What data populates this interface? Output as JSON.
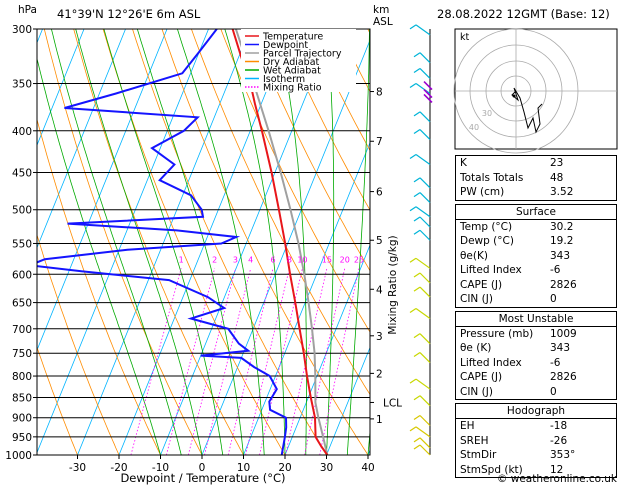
{
  "header": {
    "location": "41°39'N 12°26'E 6m ASL",
    "datetime": "28.08.2022 12GMT (Base: 12)",
    "left_unit": "hPa",
    "km_label": "km",
    "asl_label": "ASL",
    "footer": "© weatheronline.co.uk"
  },
  "legend": [
    {
      "label": "Temperature",
      "color": "#e8161a"
    },
    {
      "label": "Dewpoint",
      "color": "#1414ff"
    },
    {
      "label": "Parcel Trajectory",
      "color": "#a0a0a0"
    },
    {
      "label": "Dry Adiabat",
      "color": "#ff8c00"
    },
    {
      "label": "Wet Adiabat",
      "color": "#00aa00"
    },
    {
      "label": "Isotherm",
      "color": "#00b4ff"
    },
    {
      "label": "Mixing Ratio",
      "color": "#ff00ff"
    }
  ],
  "chart_data": {
    "type": "skew-t",
    "xlabel": "Dewpoint / Temperature (°C)",
    "ylabel_right": "Mixing Ratio (g/kg)",
    "pressure_levels": [
      300,
      350,
      400,
      450,
      500,
      550,
      600,
      650,
      700,
      750,
      800,
      850,
      900,
      950,
      1000
    ],
    "x_ticks": [
      -30,
      -20,
      -10,
      0,
      10,
      20,
      30,
      40
    ],
    "x_tick_labels": [
      "-30",
      "-20",
      "-10",
      "0",
      "10",
      "20",
      "30",
      "40"
    ],
    "km_ticks": [
      {
        "label": "8",
        "p": 358
      },
      {
        "label": "7",
        "p": 412
      },
      {
        "label": "6",
        "p": 475
      },
      {
        "label": "5",
        "p": 545
      },
      {
        "label": "4",
        "p": 626
      },
      {
        "label": "3",
        "p": 714
      },
      {
        "label": "2",
        "p": 794
      },
      {
        "label": "LCL",
        "p": 862
      },
      {
        "label": "1",
        "p": 903
      }
    ],
    "mixing_ratio_labels": [
      {
        "label": "1",
        "w": 1
      },
      {
        "label": "2",
        "w": 2
      },
      {
        "label": "3",
        "w": 3
      },
      {
        "label": "4",
        "w": 4
      },
      {
        "label": "6",
        "w": 6
      },
      {
        "label": "8",
        "w": 8
      },
      {
        "label": "10",
        "w": 10
      },
      {
        "label": "15",
        "w": 15
      },
      {
        "label": "20",
        "w": 20
      },
      {
        "label": "25",
        "w": 25
      }
    ],
    "temperature": [
      [
        1000,
        30.2
      ],
      [
        975,
        27.8
      ],
      [
        950,
        25.6
      ],
      [
        925,
        24.6
      ],
      [
        900,
        23.6
      ],
      [
        850,
        20.6
      ],
      [
        800,
        17.6
      ],
      [
        750,
        14.6
      ],
      [
        700,
        11.2
      ],
      [
        650,
        7.6
      ],
      [
        600,
        3.6
      ],
      [
        550,
        -0.6
      ],
      [
        500,
        -5.4
      ],
      [
        450,
        -10.8
      ],
      [
        400,
        -17.2
      ],
      [
        370,
        -21.6
      ],
      [
        350,
        -24.6
      ],
      [
        330,
        -28.4
      ],
      [
        300,
        -34.2
      ]
    ],
    "dewpoint": [
      [
        1000,
        19.2
      ],
      [
        950,
        18.2
      ],
      [
        925,
        17.6
      ],
      [
        900,
        16.6
      ],
      [
        880,
        12.0
      ],
      [
        860,
        11.0
      ],
      [
        830,
        11.6
      ],
      [
        800,
        8.6
      ],
      [
        780,
        4.0
      ],
      [
        760,
        0.0
      ],
      [
        755,
        -10.0
      ],
      [
        745,
        1.0
      ],
      [
        730,
        -2.0
      ],
      [
        700,
        -6.0
      ],
      [
        680,
        -16.0
      ],
      [
        660,
        -9.0
      ],
      [
        640,
        -14.0
      ],
      [
        610,
        -25.0
      ],
      [
        595,
        -47.0
      ],
      [
        585,
        -60.0
      ],
      [
        575,
        -57.0
      ],
      [
        560,
        -38.0
      ],
      [
        550,
        -16.0
      ],
      [
        540,
        -13.0
      ],
      [
        530,
        -28.0
      ],
      [
        520,
        -55.0
      ],
      [
        510,
        -23.0
      ],
      [
        500,
        -24.0
      ],
      [
        480,
        -28.0
      ],
      [
        460,
        -37.0
      ],
      [
        440,
        -35.0
      ],
      [
        420,
        -42.0
      ],
      [
        400,
        -36.0
      ],
      [
        385,
        -34.0
      ],
      [
        375,
        -67.0
      ],
      [
        360,
        -56.0
      ],
      [
        340,
        -42.0
      ],
      [
        320,
        -40.0
      ],
      [
        300,
        -38.0
      ]
    ],
    "parcel": [
      [
        1000,
        30.2
      ],
      [
        950,
        27.4
      ],
      [
        900,
        24.4
      ],
      [
        862,
        22.2
      ],
      [
        800,
        19.6
      ],
      [
        750,
        17.2
      ],
      [
        700,
        14.2
      ],
      [
        650,
        10.8
      ],
      [
        600,
        7.0
      ],
      [
        550,
        2.6
      ],
      [
        500,
        -2.6
      ],
      [
        450,
        -8.6
      ],
      [
        400,
        -15.6
      ],
      [
        350,
        -23.8
      ],
      [
        300,
        -33.4
      ]
    ]
  },
  "hodograph": {
    "label": "kt",
    "ring_labels": [
      "40",
      "30"
    ]
  },
  "indices": {
    "top": [
      {
        "label": "K",
        "value": "23"
      },
      {
        "label": "Totals Totals",
        "value": "48"
      },
      {
        "label": "PW (cm)",
        "value": "3.52"
      }
    ],
    "surface": {
      "title": "Surface",
      "rows": [
        {
          "label": "Temp (°C)",
          "value": "30.2"
        },
        {
          "label": "Dewp (°C)",
          "value": "19.2"
        },
        {
          "label": "θe(K)",
          "value": "343"
        },
        {
          "label": "Lifted Index",
          "value": "-6"
        },
        {
          "label": "CAPE (J)",
          "value": "2826"
        },
        {
          "label": "CIN (J)",
          "value": "0"
        }
      ]
    },
    "most_unstable": {
      "title": "Most Unstable",
      "rows": [
        {
          "label": "Pressure (mb)",
          "value": "1009"
        },
        {
          "label": "θe (K)",
          "value": "343"
        },
        {
          "label": "Lifted Index",
          "value": "-6"
        },
        {
          "label": "CAPE (J)",
          "value": "2826"
        },
        {
          "label": "CIN (J)",
          "value": "0"
        }
      ]
    },
    "hodograph": {
      "title": "Hodograph",
      "rows": [
        {
          "label": "EH",
          "value": "-18"
        },
        {
          "label": "SREH",
          "value": "-26"
        },
        {
          "label": "StmDir",
          "value": "353°"
        },
        {
          "label": "StmSpd (kt)",
          "value": "12"
        }
      ]
    }
  },
  "colors": {
    "temperature": "#e8161a",
    "dewpoint": "#1414ff",
    "parcel": "#a0a0a0",
    "dry_adiabat": "#ff8c00",
    "wet_adiabat": "#00aa00",
    "isotherm": "#00b4ff",
    "mixing_ratio": "#ff00ff",
    "wind_barb": "#00b4d8"
  }
}
